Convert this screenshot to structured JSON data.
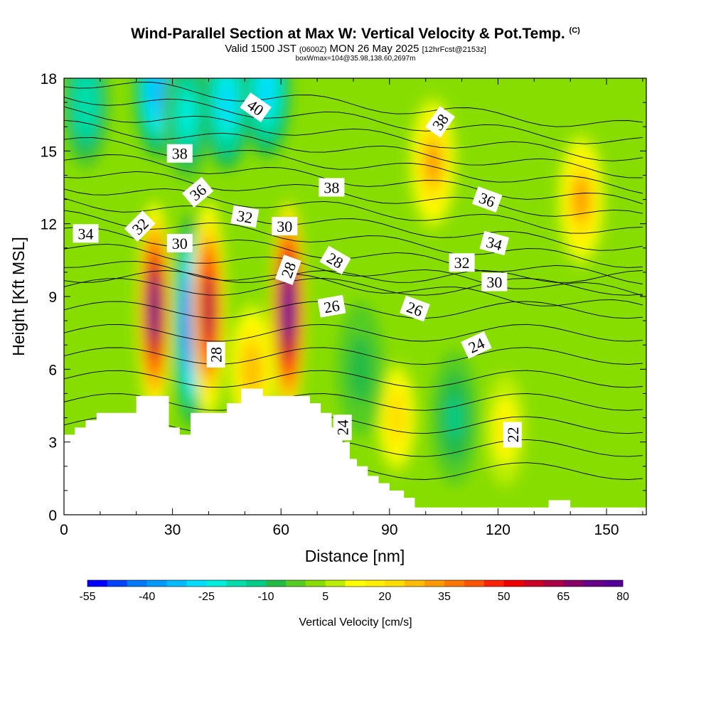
{
  "header": {
    "title": "Wind-Parallel Section at Max W: Vertical Velocity & Pot.Temp.",
    "copyright": "(C)",
    "valid_a": "Valid 1500 JST",
    "valid_b": "(0600Z)",
    "valid_c": "MON 26 May 2025",
    "valid_d": "[12hrFcst@2153z]",
    "boxinfo": "boxWmax=104@35.98,138.60,2697m"
  },
  "chart_data": {
    "type": "heatmap",
    "xlabel": "Distance [nm]",
    "ylabel": "Height [Kft MSL]",
    "xlim": [
      0,
      161
    ],
    "ylim": [
      0,
      18
    ],
    "x_ticks": [
      "0",
      "30",
      "60",
      "90",
      "120",
      "150"
    ],
    "y_ticks": [
      "0",
      "3",
      "6",
      "9",
      "12",
      "15",
      "18"
    ],
    "colorbar": {
      "label": "Vertical Velocity [cm/s]",
      "tick_labels": [
        "-55",
        "-40",
        "-25",
        "-10",
        "5",
        "20",
        "35",
        "50",
        "65",
        "80"
      ],
      "levels": [
        -55,
        -50,
        -45,
        -40,
        -35,
        -30,
        -25,
        -20,
        -15,
        -10,
        -5,
        0,
        5,
        10,
        15,
        20,
        25,
        30,
        35,
        40,
        45,
        50,
        55,
        60,
        65,
        70,
        75,
        80
      ],
      "colors": [
        "#0000ff",
        "#0044ff",
        "#0077ff",
        "#0099ff",
        "#00bbff",
        "#00ddff",
        "#00eedd",
        "#00ddaa",
        "#00cc88",
        "#22bb44",
        "#55cc22",
        "#88dd00",
        "#bbee00",
        "#ffff00",
        "#ffee00",
        "#ffdd00",
        "#ffbb00",
        "#ff9900",
        "#ff7700",
        "#ff5500",
        "#ff2200",
        "#ee0000",
        "#cc0022",
        "#aa0044",
        "#880066",
        "#660088",
        "#550099"
      ]
    },
    "vertical_velocity_features": [
      {
        "x": 25,
        "y": 8.5,
        "peak_cm_s": 70
      },
      {
        "x": 35,
        "y": 8.0,
        "peak_cm_s": -50
      },
      {
        "x": 40,
        "y": 8.5,
        "peak_cm_s": 60
      },
      {
        "x": 62,
        "y": 8.5,
        "peak_cm_s": 80
      },
      {
        "x": 52,
        "y": 6.0,
        "peak_cm_s": 25
      },
      {
        "x": 102,
        "y": 14.5,
        "peak_cm_s": 30
      },
      {
        "x": 143,
        "y": 13.0,
        "peak_cm_s": 30
      },
      {
        "x": 122,
        "y": 3.5,
        "peak_cm_s": 15
      },
      {
        "x": 92,
        "y": 4.0,
        "peak_cm_s": 20
      },
      {
        "x": 108,
        "y": 4.0,
        "peak_cm_s": -12
      },
      {
        "x": 6,
        "y": 17.0,
        "peak_cm_s": -20
      },
      {
        "x": 26,
        "y": 17.5,
        "peak_cm_s": -35
      },
      {
        "x": 34,
        "y": 16.5,
        "peak_cm_s": -25
      },
      {
        "x": 45,
        "y": 17.0,
        "peak_cm_s": -30
      },
      {
        "x": 56,
        "y": 17.5,
        "peak_cm_s": -30
      },
      {
        "x": 82,
        "y": 6.0,
        "peak_cm_s": -8
      }
    ],
    "terrain": [
      {
        "x": 0,
        "h": 3.3
      },
      {
        "x": 3,
        "h": 3.6
      },
      {
        "x": 6,
        "h": 3.9
      },
      {
        "x": 9,
        "h": 4.2
      },
      {
        "x": 20,
        "h": 4.9
      },
      {
        "x": 29,
        "h": 3.6
      },
      {
        "x": 32,
        "h": 3.3
      },
      {
        "x": 35,
        "h": 4.2
      },
      {
        "x": 45,
        "h": 4.6
      },
      {
        "x": 49,
        "h": 5.2
      },
      {
        "x": 55,
        "h": 4.9
      },
      {
        "x": 68,
        "h": 4.6
      },
      {
        "x": 71,
        "h": 4.2
      },
      {
        "x": 74,
        "h": 3.6
      },
      {
        "x": 77,
        "h": 3.0
      },
      {
        "x": 79,
        "h": 2.3
      },
      {
        "x": 81,
        "h": 2.0
      },
      {
        "x": 84,
        "h": 1.6
      },
      {
        "x": 87,
        "h": 1.3
      },
      {
        "x": 90,
        "h": 1.0
      },
      {
        "x": 94,
        "h": 0.7
      },
      {
        "x": 97,
        "h": 0.3
      },
      {
        "x": 134,
        "h": 0.6
      },
      {
        "x": 140,
        "h": 0.3
      },
      {
        "x": 161,
        "h": 0.3
      }
    ],
    "theta_contours": [
      {
        "label": "22",
        "lx": 124,
        "ly": 3.3,
        "ang": -90
      },
      {
        "label": "24",
        "lx": 77,
        "ly": 3.6,
        "ang": -90
      },
      {
        "label": "24",
        "lx": 114,
        "ly": 7.0,
        "ang": -25
      },
      {
        "label": "26",
        "lx": 74,
        "ly": 8.6,
        "ang": -10
      },
      {
        "label": "26",
        "lx": 97,
        "ly": 8.5,
        "ang": 20
      },
      {
        "label": "28",
        "lx": 42,
        "ly": 6.6,
        "ang": -90
      },
      {
        "label": "28",
        "lx": 62,
        "ly": 10.1,
        "ang": -70
      },
      {
        "label": "28",
        "lx": 75,
        "ly": 10.5,
        "ang": 30
      },
      {
        "label": "30",
        "lx": 32,
        "ly": 11.2,
        "ang": 0
      },
      {
        "label": "30",
        "lx": 61,
        "ly": 11.9,
        "ang": 0
      },
      {
        "label": "30",
        "lx": 119,
        "ly": 9.6,
        "ang": 0
      },
      {
        "label": "32",
        "lx": 21,
        "ly": 11.9,
        "ang": -45
      },
      {
        "label": "32",
        "lx": 50,
        "ly": 12.3,
        "ang": 10
      },
      {
        "label": "32",
        "lx": 110,
        "ly": 10.4,
        "ang": 0
      },
      {
        "label": "34",
        "lx": 6,
        "ly": 11.6,
        "ang": 0
      },
      {
        "label": "34",
        "lx": 119,
        "ly": 11.2,
        "ang": 15
      },
      {
        "label": "36",
        "lx": 37,
        "ly": 13.3,
        "ang": -40
      },
      {
        "label": "36",
        "lx": 117,
        "ly": 13.0,
        "ang": 20
      },
      {
        "label": "38",
        "lx": 32,
        "ly": 14.9,
        "ang": 0
      },
      {
        "label": "38",
        "lx": 74,
        "ly": 13.5,
        "ang": 0
      },
      {
        "label": "38",
        "lx": 104,
        "ly": 16.2,
        "ang": -55
      },
      {
        "label": "40",
        "lx": 53,
        "ly": 16.8,
        "ang": 35
      }
    ]
  }
}
